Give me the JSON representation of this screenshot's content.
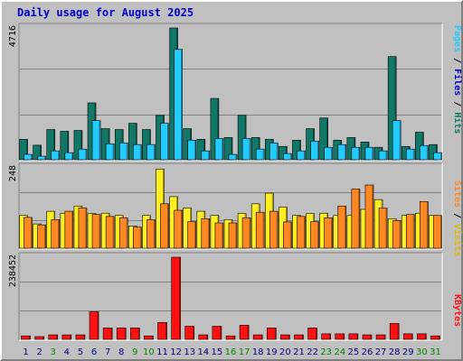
{
  "title": "Daily usage for August 2025",
  "colors": {
    "hits": "#117766",
    "files": "#22ccff",
    "pages": "#22ccff",
    "visits": "#ffee22",
    "sites": "#ff8822",
    "kbytes": "#ff1111",
    "weekend_label": "#008800",
    "weekday_label": "#000080",
    "plot_bg": "#c0c0c0",
    "title": "#0000cc"
  },
  "chart_data": [
    {
      "type": "bar",
      "name": "hits-files-pages",
      "categories": [
        "1",
        "2",
        "3",
        "4",
        "5",
        "6",
        "7",
        "8",
        "9",
        "10",
        "11",
        "12",
        "13",
        "14",
        "15",
        "16",
        "17",
        "18",
        "19",
        "20",
        "21",
        "22",
        "23",
        "24",
        "25",
        "26",
        "27",
        "28",
        "29",
        "30",
        "31"
      ],
      "weekend_days": [
        "3",
        "9",
        "10",
        "16",
        "17",
        "23",
        "24",
        "30",
        "31"
      ],
      "ymax_label": "4716",
      "ylim": [
        0,
        4716
      ],
      "series": [
        {
          "name": "Hits",
          "color": "#117766",
          "values": [
            732,
            521,
            1081,
            1019,
            1049,
            2036,
            1113,
            1081,
            1304,
            1081,
            1589,
            4716,
            1113,
            732,
            2194,
            795,
            1589,
            795,
            732,
            477,
            700,
            1113,
            1494,
            700,
            795,
            636,
            445,
            3693,
            477,
            986,
            541
          ]
        },
        {
          "name": "Files",
          "color": "#22ccff",
          "values": [
            191,
            127,
            318,
            254,
            382,
            1399,
            572,
            604,
            541,
            541,
            1304,
            3947,
            700,
            318,
            763,
            191,
            763,
            382,
            604,
            223,
            318,
            668,
            445,
            541,
            445,
            445,
            318,
            1399,
            382,
            509,
            254
          ]
        }
      ],
      "legend": [
        "Pages",
        "Files",
        "Hits"
      ]
    },
    {
      "type": "bar",
      "name": "visits-sites",
      "categories": [
        "1",
        "2",
        "3",
        "4",
        "5",
        "6",
        "7",
        "8",
        "9",
        "10",
        "11",
        "12",
        "13",
        "14",
        "15",
        "16",
        "17",
        "18",
        "19",
        "20",
        "21",
        "22",
        "23",
        "24",
        "25",
        "26",
        "27",
        "28",
        "29",
        "30",
        "31"
      ],
      "ymax_label": "248",
      "ylim": [
        0,
        248
      ],
      "series": [
        {
          "name": "Visits",
          "color": "#ffee22",
          "values": [
            101,
            75,
            114,
            108,
            130,
            107,
            108,
            101,
            68,
            101,
            244,
            159,
            124,
            114,
            101,
            88,
            107,
            137,
            170,
            127,
            101,
            107,
            108,
            101,
            101,
            120,
            150,
            91,
            101,
            108,
            101
          ]
        },
        {
          "name": "Sites",
          "color": "#ff8822",
          "values": [
            95,
            72,
            88,
            114,
            124,
            104,
            98,
            94,
            65,
            88,
            137,
            117,
            82,
            91,
            78,
            78,
            94,
            111,
            114,
            81,
            98,
            82,
            94,
            130,
            183,
            195,
            124,
            85,
            104,
            144,
            101
          ]
        }
      ],
      "legend": [
        "Sites",
        "Visits"
      ]
    },
    {
      "type": "bar",
      "name": "kbytes",
      "categories": [
        "1",
        "2",
        "3",
        "4",
        "5",
        "6",
        "7",
        "8",
        "9",
        "10",
        "11",
        "12",
        "13",
        "14",
        "15",
        "16",
        "17",
        "18",
        "19",
        "20",
        "21",
        "22",
        "23",
        "24",
        "25",
        "26",
        "27",
        "28",
        "29",
        "30",
        "31"
      ],
      "ymax_label": "238452",
      "ylim": [
        0,
        238452
      ],
      "series": [
        {
          "name": "KBytes",
          "color": "#ff1111",
          "values": [
            10000,
            8000,
            13000,
            13000,
            13000,
            80000,
            33000,
            33000,
            33000,
            10000,
            49000,
            238452,
            38000,
            13000,
            38000,
            10000,
            41000,
            13000,
            33000,
            13000,
            13000,
            33000,
            16000,
            16000,
            16000,
            13000,
            13000,
            46000,
            16000,
            16000,
            10000
          ]
        }
      ],
      "legend": [
        "KBytes"
      ]
    }
  ]
}
